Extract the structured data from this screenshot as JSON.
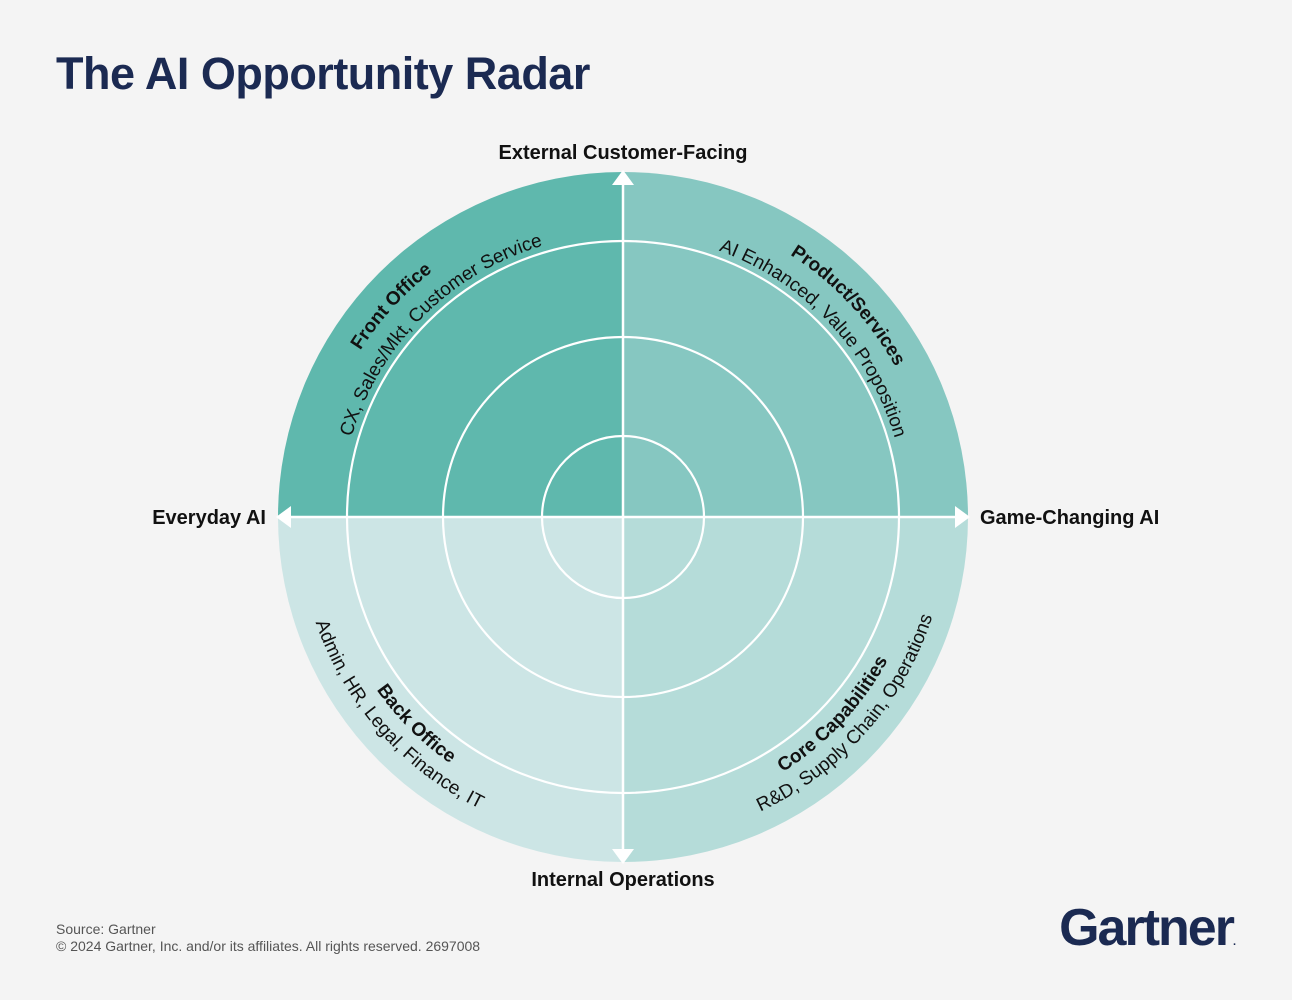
{
  "title": "The AI Opportunity Radar",
  "axes": {
    "top": "External Customer-Facing",
    "bottom": "Internal Operations",
    "left": "Everyday AI",
    "right": "Game-Changing AI"
  },
  "quadrants": {
    "top_left": {
      "name": "Front Office",
      "detail": "CX, Sales/Mkt, Customer Service",
      "color": "#5fb8ad"
    },
    "top_right": {
      "name": "Product/Services",
      "detail": "AI Enhanced, Value Proposition",
      "color": "#86c7c1"
    },
    "bottom_left": {
      "name": "Back Office",
      "detail": "Admin, HR, Legal, Finance, IT",
      "color": "#cce5e5"
    },
    "bottom_right": {
      "name": "Core Capabilities",
      "detail": "R&D, Supply Chain, Operations",
      "color": "#b5dcd9"
    }
  },
  "footer": {
    "source": "Source: Gartner",
    "copyright": "© 2024 Gartner, Inc. and/or its affiliates. All rights reserved. 2697008"
  },
  "logo": {
    "text": "Gartner",
    "mark": "."
  }
}
